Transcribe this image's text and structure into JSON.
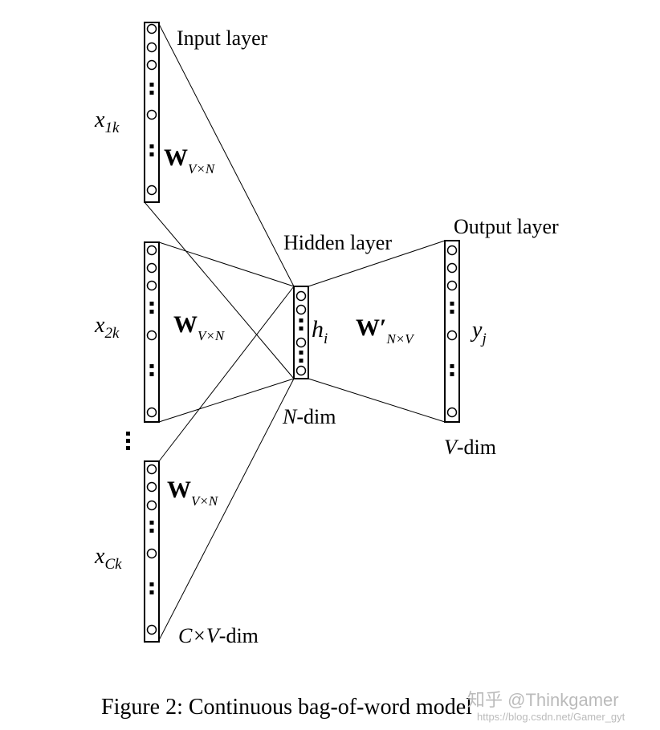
{
  "labels": {
    "input_layer": "Input layer",
    "hidden_layer": "Hidden layer",
    "output_layer": "Output layer",
    "x1k": {
      "base": "x",
      "sub": "1k"
    },
    "x2k": {
      "base": "x",
      "sub": "2k"
    },
    "xCk": {
      "base": "x",
      "sub": "Ck"
    },
    "w_input": {
      "base": "W",
      "sub": "V×N"
    },
    "w_output": {
      "base": "W′",
      "sub": "N×V"
    },
    "h": {
      "base": "h",
      "sub": "i"
    },
    "y": {
      "base": "y",
      "sub": "j"
    },
    "n_dim": {
      "var": "N",
      "rest": "-dim"
    },
    "v_dim": {
      "var": "V",
      "rest": "-dim"
    },
    "cv_dim": {
      "var": "C×V",
      "rest": "-dim"
    },
    "ellipsis": "⋮"
  },
  "caption": "Figure 2: Continuous bag-of-word model",
  "watermark": {
    "line1": "知乎 @Thinkgamer",
    "line2": "https://blog.csdn.net/Gamer_gyt"
  }
}
